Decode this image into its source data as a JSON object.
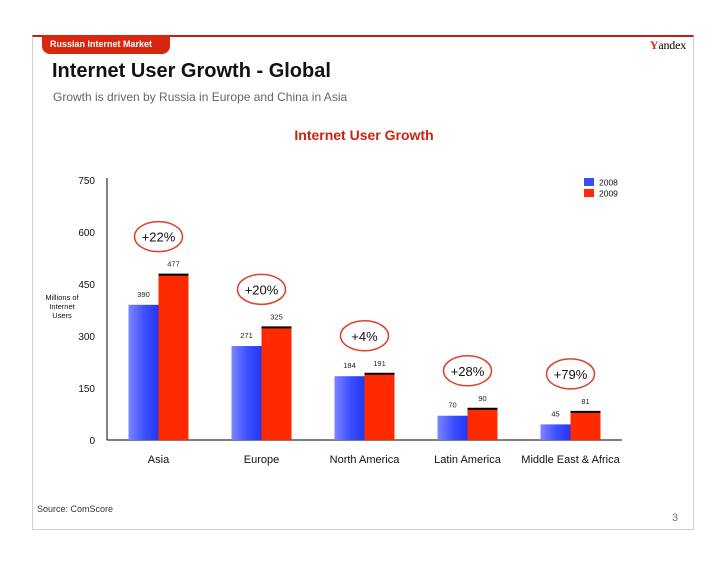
{
  "header": {
    "section_label": "Russian Internet Market",
    "logo": "Yandex",
    "title": "Internet User Growth - Global",
    "subtitle": "Growth is driven by Russia in Europe and China in Asia"
  },
  "footer": {
    "source": "Source: ComScore",
    "page_number": "3"
  },
  "colors": {
    "accent_red": "#d8260f",
    "series_2008": "#3b4dff",
    "series_2009": "#ff2a00",
    "growth_circle": "#d9442b"
  },
  "chart_data": {
    "type": "bar",
    "title": "Internet User Growth",
    "xlabel": "",
    "ylabel": "Millions of Internet Users",
    "ylabel_lines": [
      "Millions of",
      "Internet",
      "Users"
    ],
    "ylim": [
      0,
      750
    ],
    "yticks": [
      0,
      150,
      300,
      450,
      600,
      750
    ],
    "grid": false,
    "legend_position": "top-right",
    "categories": [
      "Asia",
      "Europe",
      "North America",
      "Latin America",
      "Middle East & Africa"
    ],
    "series": [
      {
        "name": "2008",
        "values": [
          390,
          271,
          184,
          70,
          45
        ]
      },
      {
        "name": "2009",
        "values": [
          477,
          325,
          191,
          90,
          81
        ]
      }
    ],
    "growth_labels": [
      "+22%",
      "+20%",
      "+4%",
      "+28%",
      "+79%"
    ]
  }
}
